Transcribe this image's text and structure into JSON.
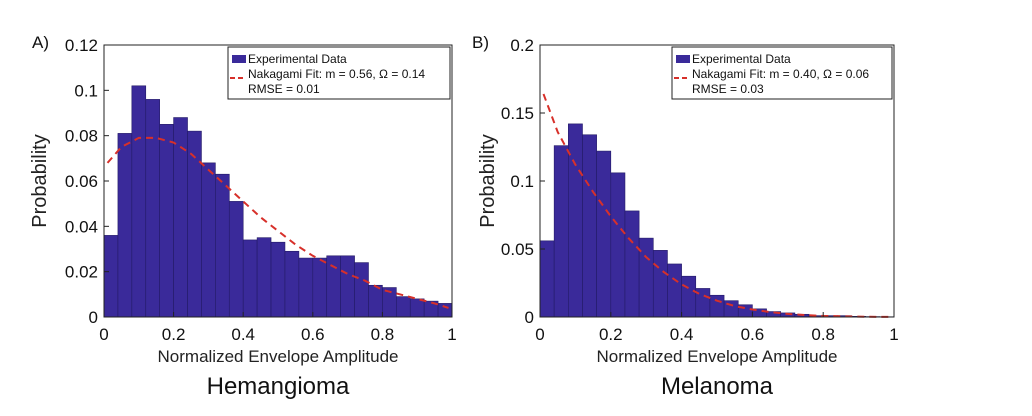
{
  "figure": {
    "panels": [
      {
        "label": "A)",
        "title": "Hemangioma"
      },
      {
        "label": "B)",
        "title": "Melanoma"
      }
    ]
  },
  "colors": {
    "bar_fill": "#3a2a9a",
    "bar_edge": "#231a66",
    "fit_line": "#d7302a"
  },
  "chart_data": [
    {
      "type": "bar",
      "title": "Hemangioma",
      "xlabel": "Normalized Envelope Amplitude",
      "ylabel": "Probability",
      "xlim": [
        0,
        1
      ],
      "ylim": [
        0,
        0.12
      ],
      "xticks": [
        "0",
        "0.2",
        "0.4",
        "0.6",
        "0.8",
        "1"
      ],
      "xtick_values": [
        0,
        0.2,
        0.4,
        0.6,
        0.8,
        1
      ],
      "yticks": [
        "0",
        "0.02",
        "0.04",
        "0.06",
        "0.08",
        "0.1",
        "0.12"
      ],
      "ytick_values": [
        0,
        0.02,
        0.04,
        0.06,
        0.08,
        0.1,
        0.12
      ],
      "bin_edges_start": 0,
      "bin_width": 0.04,
      "series": [
        {
          "name": "Experimental Data",
          "kind": "histogram",
          "values": [
            0.036,
            0.081,
            0.102,
            0.096,
            0.085,
            0.088,
            0.082,
            0.068,
            0.063,
            0.051,
            0.034,
            0.035,
            0.033,
            0.029,
            0.026,
            0.026,
            0.027,
            0.027,
            0.024,
            0.014,
            0.013,
            0.009,
            0.008,
            0.007,
            0.006,
            0.003
          ]
        },
        {
          "name": "Nakagami Fit: m = 0.56, Ω = 0.14",
          "kind": "line",
          "x": [
            0.01,
            0.05,
            0.1,
            0.15,
            0.2,
            0.25,
            0.3,
            0.35,
            0.4,
            0.45,
            0.5,
            0.55,
            0.6,
            0.65,
            0.7,
            0.75,
            0.8,
            0.85,
            0.9,
            0.95,
            0.99
          ],
          "y": [
            0.068,
            0.075,
            0.079,
            0.079,
            0.077,
            0.072,
            0.065,
            0.058,
            0.051,
            0.044,
            0.038,
            0.032,
            0.027,
            0.023,
            0.019,
            0.016,
            0.012,
            0.01,
            0.008,
            0.006,
            0.004
          ]
        }
      ],
      "legend": {
        "position": "top-right",
        "entries": [
          "Experimental Data",
          "Nakagami Fit: m = 0.56, Ω = 0.14"
        ],
        "extra": "RMSE = 0.01"
      }
    },
    {
      "type": "bar",
      "title": "Melanoma",
      "xlabel": "Normalized Envelope Amplitude",
      "ylabel": "Probability",
      "xlim": [
        0,
        1
      ],
      "ylim": [
        0,
        0.2
      ],
      "xticks": [
        "0",
        "0.2",
        "0.4",
        "0.6",
        "0.8",
        "1"
      ],
      "xtick_values": [
        0,
        0.2,
        0.4,
        0.6,
        0.8,
        1
      ],
      "yticks": [
        "0",
        "0.05",
        "0.1",
        "0.15",
        "0.2"
      ],
      "ytick_values": [
        0,
        0.05,
        0.1,
        0.15,
        0.2
      ],
      "bin_edges_start": 0,
      "bin_width": 0.04,
      "series": [
        {
          "name": "Experimental Data",
          "kind": "histogram",
          "values": [
            0.056,
            0.126,
            0.142,
            0.134,
            0.122,
            0.106,
            0.078,
            0.058,
            0.049,
            0.039,
            0.03,
            0.021,
            0.016,
            0.012,
            0.009,
            0.006,
            0.004,
            0.003,
            0.002,
            0.001,
            0.001,
            0.001,
            0.0005,
            0.0003,
            0.0002
          ]
        },
        {
          "name": "Nakagami Fit: m = 0.40, Ω = 0.06",
          "kind": "line",
          "x": [
            0.01,
            0.05,
            0.1,
            0.15,
            0.2,
            0.25,
            0.3,
            0.35,
            0.4,
            0.45,
            0.5,
            0.55,
            0.6,
            0.65,
            0.7,
            0.75,
            0.8,
            0.85,
            0.9,
            0.95,
            0.99
          ],
          "y": [
            0.164,
            0.136,
            0.112,
            0.092,
            0.074,
            0.058,
            0.044,
            0.033,
            0.024,
            0.017,
            0.012,
            0.008,
            0.0055,
            0.0036,
            0.0023,
            0.0014,
            0.0008,
            0.0005,
            0.0003,
            0.0001,
            0.0001
          ]
        }
      ],
      "legend": {
        "position": "top-right",
        "entries": [
          "Experimental Data",
          "Nakagami Fit: m = 0.40, Ω = 0.06"
        ],
        "extra": "RMSE = 0.03"
      }
    }
  ]
}
